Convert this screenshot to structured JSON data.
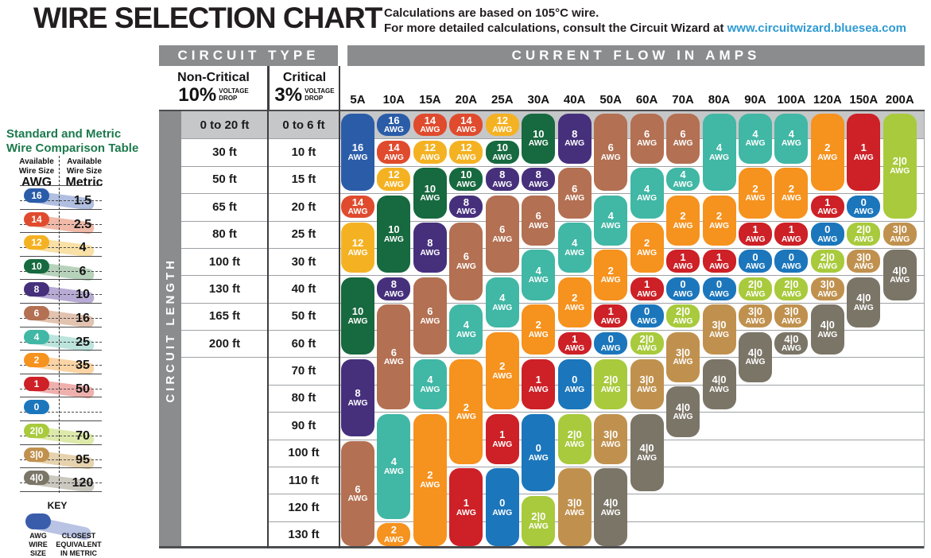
{
  "page": {
    "title": "WIRE SELECTION CHART",
    "note_line1": "Calculations are based on 105°C wire.",
    "note_line2": "For more detailed calculations, consult the Circuit Wizard at ",
    "note_link": "www.circuitwizard.bluesea.com"
  },
  "table": {
    "circuit_type_header": "CIRCUIT TYPE",
    "current_flow_header": "CURRENT FLOW IN AMPS",
    "circuit_length_label": "CIRCUIT LENGTH",
    "voltage_word": "VOLTAGE",
    "drop_word": "DROP",
    "non_critical": {
      "title": "Non-Critical",
      "percent": "10%"
    },
    "critical": {
      "title": "Critical",
      "percent": "3%"
    }
  },
  "sidebar": {
    "title_line1": "Standard and Metric",
    "title_line2": "Wire Comparison Table",
    "available_line1": "Available",
    "available_line2": "Wire Size",
    "awg_unit": "AWG",
    "metric_unit": "Metric",
    "rows": [
      {
        "awg": "16",
        "metric": "1.5",
        "tint": "#b0bfe0"
      },
      {
        "awg": "14",
        "metric": "2.5",
        "tint": "#f1b9a8"
      },
      {
        "awg": "12",
        "metric": "4",
        "tint": "#f9e0a6"
      },
      {
        "awg": "10",
        "metric": "6",
        "tint": "#b7d2bb"
      },
      {
        "awg": "8",
        "metric": "10",
        "tint": "#b7abd5"
      },
      {
        "awg": "6",
        "metric": "16",
        "tint": "#e2c3b0"
      },
      {
        "awg": "4",
        "metric": "25",
        "tint": "#bce4dc"
      },
      {
        "awg": "2",
        "metric": "35",
        "tint": "#fad4a4"
      },
      {
        "awg": "1",
        "metric": "50",
        "tint": "#efb0ad"
      },
      {
        "awg": "0",
        "metric": "",
        "tint": ""
      },
      {
        "awg": "2|0",
        "metric": "70",
        "tint": "#dde9ab"
      },
      {
        "awg": "3|0",
        "metric": "95",
        "tint": "#e6d2ad"
      },
      {
        "awg": "4|0",
        "metric": "120",
        "tint": "#cbc8bf"
      }
    ],
    "key": {
      "label": "KEY",
      "left_caption": "AWG\nWIRE\nSIZE",
      "right_caption": "CLOSEST\nEQUIVALENT\nIN METRIC",
      "pill_color": "#3a5dab",
      "swoosh_color": "#b9c3e3"
    }
  },
  "colors": {
    "header_bar": "#8a8c8e",
    "row1_band": "#c6c7c8",
    "gridline": "#9ea1a4",
    "border_dark": "#4c4d4f",
    "divider_dark": "#3f3f41",
    "link_blue": "#2e9ad2",
    "sidebar_green": "#1c7a4c"
  },
  "chart_data": {
    "type": "table",
    "title": "WIRE SELECTION CHART",
    "awg_word": "AWG",
    "columns": [
      "5A",
      "10A",
      "15A",
      "20A",
      "25A",
      "30A",
      "40A",
      "50A",
      "60A",
      "70A",
      "80A",
      "90A",
      "100A",
      "120A",
      "150A",
      "200A"
    ],
    "rows_non_critical_10pct": [
      "0 to 20 ft",
      "30 ft",
      "50 ft",
      "65 ft",
      "80 ft",
      "100 ft",
      "130 ft",
      "165 ft",
      "200 ft",
      "",
      "",
      "",
      "",
      "",
      "",
      ""
    ],
    "rows_critical_3pct": [
      "0 to 6 ft",
      "10 ft",
      "15 ft",
      "20 ft",
      "25 ft",
      "30 ft",
      "40 ft",
      "50 ft",
      "60 ft",
      "70 ft",
      "80 ft",
      "90 ft",
      "100 ft",
      "110 ft",
      "120 ft",
      "130 ft"
    ],
    "awg_colors": {
      "16": "#2b5ca8",
      "14": "#e04b2e",
      "12": "#f4b223",
      "10": "#17693f",
      "8": "#46307c",
      "6": "#b37052",
      "4": "#41b7a5",
      "2": "#f6921e",
      "1": "#cd2027",
      "0": "#1b76bc",
      "2|0": "#a8ca3c",
      "3|0": "#c0914e",
      "4|0": "#7b7568"
    },
    "cells": {
      "5A": [
        {
          "awg": "16",
          "rows": [
            1,
            3
          ]
        },
        {
          "awg": "14",
          "rows": [
            4,
            4
          ]
        },
        {
          "awg": "12",
          "rows": [
            5,
            6
          ]
        },
        {
          "awg": "10",
          "rows": [
            7,
            9
          ]
        },
        {
          "awg": "8",
          "rows": [
            10,
            12
          ]
        },
        {
          "awg": "6",
          "rows": [
            13,
            16
          ]
        }
      ],
      "10A": [
        {
          "awg": "16",
          "rows": [
            1,
            1
          ]
        },
        {
          "awg": "14",
          "rows": [
            2,
            2
          ]
        },
        {
          "awg": "12",
          "rows": [
            3,
            3
          ]
        },
        {
          "awg": "10",
          "rows": [
            4,
            6
          ]
        },
        {
          "awg": "8",
          "rows": [
            7,
            7
          ]
        },
        {
          "awg": "6",
          "rows": [
            8,
            11
          ]
        },
        {
          "awg": "4",
          "rows": [
            12,
            15
          ]
        },
        {
          "awg": "2",
          "rows": [
            16,
            16
          ]
        }
      ],
      "15A": [
        {
          "awg": "14",
          "rows": [
            1,
            1
          ]
        },
        {
          "awg": "12",
          "rows": [
            2,
            2
          ]
        },
        {
          "awg": "10",
          "rows": [
            3,
            4
          ]
        },
        {
          "awg": "8",
          "rows": [
            5,
            6
          ]
        },
        {
          "awg": "6",
          "rows": [
            7,
            9
          ]
        },
        {
          "awg": "4",
          "rows": [
            10,
            11
          ]
        },
        {
          "awg": "2",
          "rows": [
            12,
            16
          ]
        }
      ],
      "20A": [
        {
          "awg": "14",
          "rows": [
            1,
            1
          ]
        },
        {
          "awg": "12",
          "rows": [
            2,
            2
          ]
        },
        {
          "awg": "10",
          "rows": [
            3,
            3
          ]
        },
        {
          "awg": "8",
          "rows": [
            4,
            4
          ]
        },
        {
          "awg": "6",
          "rows": [
            5,
            7
          ]
        },
        {
          "awg": "4",
          "rows": [
            8,
            9
          ]
        },
        {
          "awg": "2",
          "rows": [
            10,
            13
          ]
        },
        {
          "awg": "1",
          "rows": [
            14,
            16
          ]
        }
      ],
      "25A": [
        {
          "awg": "12",
          "rows": [
            1,
            1
          ]
        },
        {
          "awg": "10",
          "rows": [
            2,
            2
          ]
        },
        {
          "awg": "8",
          "rows": [
            3,
            3
          ]
        },
        {
          "awg": "6",
          "rows": [
            4,
            6
          ]
        },
        {
          "awg": "4",
          "rows": [
            7,
            8
          ]
        },
        {
          "awg": "2",
          "rows": [
            9,
            11
          ]
        },
        {
          "awg": "1",
          "rows": [
            12,
            13
          ]
        },
        {
          "awg": "0",
          "rows": [
            14,
            16
          ]
        }
      ],
      "30A": [
        {
          "awg": "10",
          "rows": [
            1,
            2
          ]
        },
        {
          "awg": "8",
          "rows": [
            3,
            3
          ]
        },
        {
          "awg": "6",
          "rows": [
            4,
            5
          ]
        },
        {
          "awg": "4",
          "rows": [
            6,
            7
          ]
        },
        {
          "awg": "2",
          "rows": [
            8,
            9
          ]
        },
        {
          "awg": "1",
          "rows": [
            10,
            11
          ]
        },
        {
          "awg": "0",
          "rows": [
            12,
            14
          ]
        },
        {
          "awg": "2|0",
          "rows": [
            15,
            16
          ]
        }
      ],
      "40A": [
        {
          "awg": "8",
          "rows": [
            1,
            2
          ]
        },
        {
          "awg": "6",
          "rows": [
            3,
            4
          ]
        },
        {
          "awg": "4",
          "rows": [
            5,
            6
          ]
        },
        {
          "awg": "2",
          "rows": [
            7,
            8
          ]
        },
        {
          "awg": "1",
          "rows": [
            9,
            9
          ]
        },
        {
          "awg": "0",
          "rows": [
            10,
            11
          ]
        },
        {
          "awg": "2|0",
          "rows": [
            12,
            13
          ]
        },
        {
          "awg": "3|0",
          "rows": [
            14,
            16
          ]
        }
      ],
      "50A": [
        {
          "awg": "6",
          "rows": [
            1,
            3
          ]
        },
        {
          "awg": "4",
          "rows": [
            4,
            5
          ]
        },
        {
          "awg": "2",
          "rows": [
            6,
            7
          ]
        },
        {
          "awg": "1",
          "rows": [
            8,
            8
          ]
        },
        {
          "awg": "0",
          "rows": [
            9,
            9
          ]
        },
        {
          "awg": "2|0",
          "rows": [
            10,
            11
          ]
        },
        {
          "awg": "3|0",
          "rows": [
            12,
            13
          ]
        },
        {
          "awg": "4|0",
          "rows": [
            14,
            16
          ]
        }
      ],
      "60A": [
        {
          "awg": "6",
          "rows": [
            1,
            2
          ]
        },
        {
          "awg": "4",
          "rows": [
            3,
            4
          ]
        },
        {
          "awg": "2",
          "rows": [
            5,
            6
          ]
        },
        {
          "awg": "1",
          "rows": [
            7,
            7
          ]
        },
        {
          "awg": "0",
          "rows": [
            8,
            8
          ]
        },
        {
          "awg": "2|0",
          "rows": [
            9,
            9
          ]
        },
        {
          "awg": "3|0",
          "rows": [
            10,
            11
          ]
        },
        {
          "awg": "4|0",
          "rows": [
            12,
            14
          ]
        }
      ],
      "70A": [
        {
          "awg": "6",
          "rows": [
            1,
            2
          ]
        },
        {
          "awg": "4",
          "rows": [
            3,
            3
          ]
        },
        {
          "awg": "2",
          "rows": [
            4,
            5
          ]
        },
        {
          "awg": "1",
          "rows": [
            6,
            6
          ]
        },
        {
          "awg": "0",
          "rows": [
            7,
            7
          ]
        },
        {
          "awg": "2|0",
          "rows": [
            8,
            8
          ]
        },
        {
          "awg": "3|0",
          "rows": [
            9,
            10
          ]
        },
        {
          "awg": "4|0",
          "rows": [
            11,
            12
          ]
        }
      ],
      "80A": [
        {
          "awg": "4",
          "rows": [
            1,
            3
          ]
        },
        {
          "awg": "2",
          "rows": [
            4,
            5
          ]
        },
        {
          "awg": "1",
          "rows": [
            6,
            6
          ]
        },
        {
          "awg": "0",
          "rows": [
            7,
            7
          ]
        },
        {
          "awg": "3|0",
          "rows": [
            8,
            9
          ]
        },
        {
          "awg": "4|0",
          "rows": [
            10,
            11
          ]
        }
      ],
      "90A": [
        {
          "awg": "4",
          "rows": [
            1,
            2
          ]
        },
        {
          "awg": "2",
          "rows": [
            3,
            4
          ]
        },
        {
          "awg": "1",
          "rows": [
            5,
            5
          ]
        },
        {
          "awg": "0",
          "rows": [
            6,
            6
          ]
        },
        {
          "awg": "2|0",
          "rows": [
            7,
            7
          ]
        },
        {
          "awg": "3|0",
          "rows": [
            8,
            8
          ]
        },
        {
          "awg": "4|0",
          "rows": [
            9,
            10
          ]
        }
      ],
      "100A": [
        {
          "awg": "4",
          "rows": [
            1,
            2
          ]
        },
        {
          "awg": "2",
          "rows": [
            3,
            4
          ]
        },
        {
          "awg": "1",
          "rows": [
            5,
            5
          ]
        },
        {
          "awg": "0",
          "rows": [
            6,
            6
          ]
        },
        {
          "awg": "2|0",
          "rows": [
            7,
            7
          ]
        },
        {
          "awg": "3|0",
          "rows": [
            8,
            8
          ]
        },
        {
          "awg": "4|0",
          "rows": [
            9,
            9
          ]
        }
      ],
      "120A": [
        {
          "awg": "2",
          "rows": [
            1,
            3
          ]
        },
        {
          "awg": "1",
          "rows": [
            4,
            4
          ]
        },
        {
          "awg": "0",
          "rows": [
            5,
            5
          ]
        },
        {
          "awg": "2|0",
          "rows": [
            6,
            6
          ]
        },
        {
          "awg": "3|0",
          "rows": [
            7,
            7
          ]
        },
        {
          "awg": "4|0",
          "rows": [
            8,
            9
          ]
        }
      ],
      "150A": [
        {
          "awg": "1",
          "rows": [
            1,
            3
          ]
        },
        {
          "awg": "0",
          "rows": [
            4,
            4
          ]
        },
        {
          "awg": "2|0",
          "rows": [
            5,
            5
          ]
        },
        {
          "awg": "3|0",
          "rows": [
            6,
            6
          ]
        },
        {
          "awg": "4|0",
          "rows": [
            7,
            8
          ]
        }
      ],
      "200A": [
        {
          "awg": "2|0",
          "rows": [
            1,
            4
          ]
        },
        {
          "awg": "3|0",
          "rows": [
            5,
            5
          ]
        },
        {
          "awg": "4|0",
          "rows": [
            6,
            7
          ]
        }
      ]
    }
  }
}
